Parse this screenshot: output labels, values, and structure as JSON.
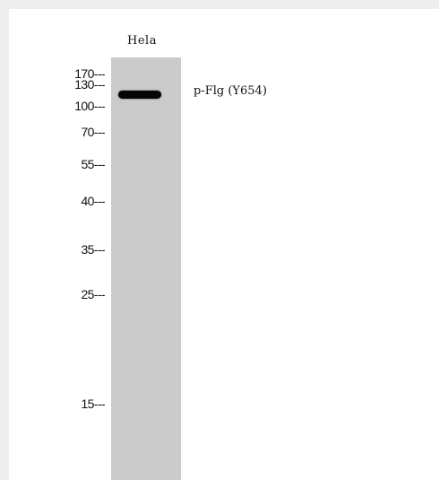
{
  "lane": {
    "label": "Hela"
  },
  "markers": [
    {
      "label": "170---",
      "id": "170"
    },
    {
      "label": "130---",
      "id": "130"
    },
    {
      "label": "100---",
      "id": "100"
    },
    {
      "label": "70---",
      "id": "70"
    },
    {
      "label": "55---",
      "id": "55"
    },
    {
      "label": "40---",
      "id": "40"
    },
    {
      "label": "35---",
      "id": "35"
    },
    {
      "label": "25---",
      "id": "25"
    },
    {
      "label": "15---",
      "id": "15"
    }
  ],
  "band": {
    "label": "p-Flg (Y654)"
  },
  "colors": {
    "background": "#eeeeee",
    "panel": "#ffffff",
    "lane": "#cbcbcb",
    "band": "#050505"
  }
}
